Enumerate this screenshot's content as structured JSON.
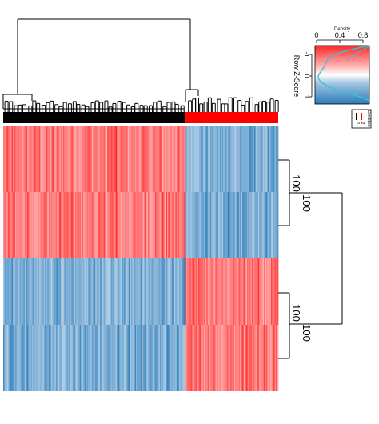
{
  "chart_data": {
    "type": "heatmap",
    "row_blocks": [
      {
        "label": "100",
        "pattern": "high_then_low"
      },
      {
        "label": "100",
        "pattern": "high_then_low"
      },
      {
        "label": "100",
        "pattern": "low_then_high"
      },
      {
        "label": "100",
        "pattern": "low_then_high"
      }
    ],
    "row_cluster_labels": [
      "100",
      "100",
      "100",
      "100"
    ],
    "column_groups": [
      {
        "name": "1",
        "color": "#000000",
        "fraction": 0.66
      },
      {
        "name": "2",
        "color": "#ff0000",
        "fraction": 0.34
      }
    ],
    "color_scale": {
      "low": "#2b7bba",
      "mid": "#ffffff",
      "high": "#ff2626",
      "zlim": [
        -1,
        1
      ]
    },
    "color_key": {
      "title": "Density",
      "xlabel": "Row Z-Score",
      "xticks": [
        "-1",
        "0",
        "1"
      ],
      "density_ticks": [
        "0",
        "0.4",
        "0.8"
      ]
    },
    "legend": {
      "title": "Condition",
      "entries": [
        "1",
        "2"
      ],
      "colors": [
        "#000000",
        "#ff0000"
      ]
    },
    "grid": false
  }
}
